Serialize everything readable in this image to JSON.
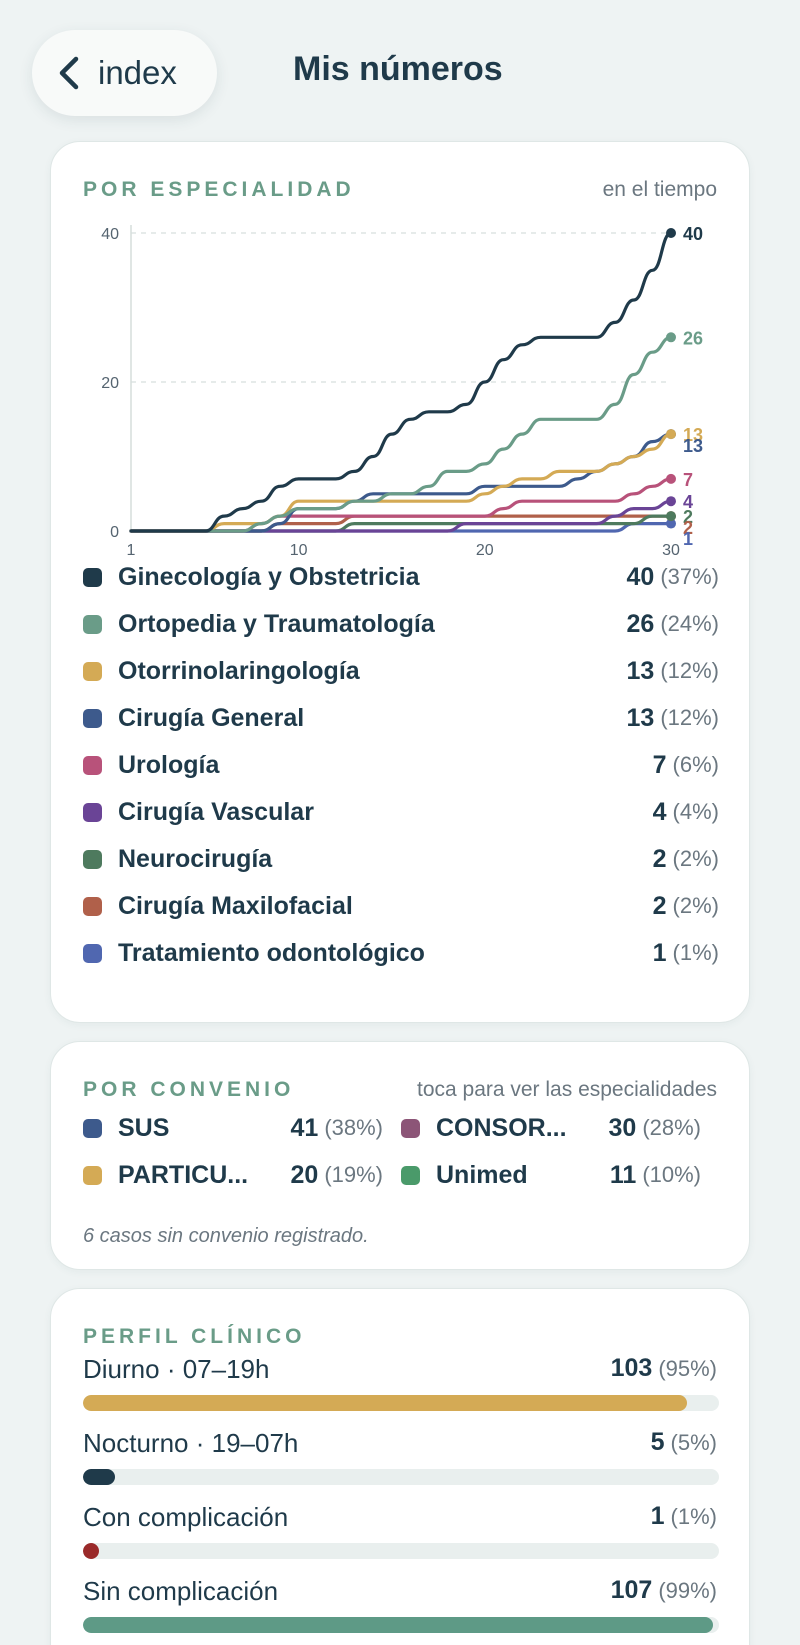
{
  "header": {
    "back_label": "index",
    "title": "Mis números"
  },
  "specialty": {
    "title": "POR ESPECIALIDAD",
    "subtitle": "en el tiempo",
    "items": [
      {
        "label": "Ginecología y Obstetricia",
        "count": "40",
        "pct": "(37%)",
        "color": "#1f3a4a"
      },
      {
        "label": "Ortopedia y Traumatología",
        "count": "26",
        "pct": "(24%)",
        "color": "#6a9c88"
      },
      {
        "label": "Otorrinolaringología",
        "count": "13",
        "pct": "(12%)",
        "color": "#d4aa55"
      },
      {
        "label": "Cirugía General",
        "count": "13",
        "pct": "(12%)",
        "color": "#3d5a8c"
      },
      {
        "label": "Urología",
        "count": "7",
        "pct": "(6%)",
        "color": "#b8527a"
      },
      {
        "label": "Cirugía Vascular",
        "count": "4",
        "pct": "(4%)",
        "color": "#6a4496"
      },
      {
        "label": "Neurocirugía",
        "count": "2",
        "pct": "(2%)",
        "color": "#4e7a5e"
      },
      {
        "label": "Cirugía Maxilofacial",
        "count": "2",
        "pct": "(2%)",
        "color": "#b0604a"
      },
      {
        "label": "Tratamiento odontológico",
        "count": "1",
        "pct": "(1%)",
        "color": "#5067b0"
      }
    ]
  },
  "chart_data": {
    "type": "line",
    "x": [
      1,
      2,
      3,
      4,
      5,
      6,
      7,
      8,
      9,
      10,
      11,
      12,
      13,
      14,
      15,
      16,
      17,
      18,
      19,
      20,
      21,
      22,
      23,
      24,
      25,
      26,
      27,
      28,
      29,
      30
    ],
    "x_ticks": [
      "1",
      "10",
      "20",
      "30"
    ],
    "y_ticks": [
      "0",
      "20",
      "40"
    ],
    "ylim": [
      0,
      40
    ],
    "grid": true,
    "series": [
      {
        "name": "Ginecología y Obstetricia",
        "end_label": "40",
        "color": "#1f3a4a",
        "values": [
          0,
          0,
          0,
          0,
          0,
          2,
          3,
          4,
          6,
          7,
          7,
          7,
          8,
          10,
          13,
          15,
          16,
          16,
          17,
          20,
          23,
          25,
          26,
          26,
          26,
          26,
          28,
          31,
          35,
          40
        ]
      },
      {
        "name": "Ortopedia y Traumatología",
        "end_label": "26",
        "color": "#6a9c88",
        "values": [
          0,
          0,
          0,
          0,
          0,
          0,
          0,
          1,
          2,
          3,
          3,
          3,
          4,
          4,
          5,
          5,
          6,
          8,
          8,
          9,
          11,
          13,
          15,
          15,
          15,
          15,
          17,
          21,
          24,
          26
        ]
      },
      {
        "name": "Otorrinolaringología",
        "end_label": "13",
        "color": "#d4aa55",
        "values": [
          0,
          0,
          0,
          0,
          0,
          1,
          1,
          1,
          2,
          4,
          4,
          4,
          4,
          4,
          4,
          4,
          4,
          4,
          4,
          5,
          6,
          7,
          7,
          8,
          8,
          8,
          9,
          10,
          11,
          13
        ]
      },
      {
        "name": "Cirugía General",
        "end_label": "13",
        "color": "#3d5a8c",
        "values": [
          0,
          0,
          0,
          0,
          0,
          0,
          0,
          0,
          1,
          3,
          3,
          3,
          4,
          5,
          5,
          5,
          5,
          5,
          5,
          6,
          6,
          6,
          6,
          6,
          7,
          8,
          9,
          10,
          12,
          13
        ]
      },
      {
        "name": "Urología",
        "end_label": "7",
        "color": "#b8527a",
        "values": [
          0,
          0,
          0,
          0,
          0,
          0,
          0,
          1,
          2,
          2,
          2,
          2,
          2,
          2,
          2,
          2,
          2,
          2,
          2,
          2,
          3,
          4,
          4,
          4,
          4,
          4,
          4,
          5,
          6,
          7
        ]
      },
      {
        "name": "Cirugía Vascular",
        "end_label": "4",
        "color": "#6a4496",
        "values": [
          0,
          0,
          0,
          0,
          0,
          0,
          0,
          0,
          0,
          0,
          0,
          0,
          0,
          0,
          0,
          0,
          0,
          0,
          1,
          1,
          1,
          1,
          1,
          1,
          1,
          1,
          2,
          3,
          3,
          4
        ]
      },
      {
        "name": "Neurocirugía",
        "end_label": "2",
        "color": "#4e7a5e",
        "values": [
          0,
          0,
          0,
          0,
          0,
          0,
          0,
          0,
          0,
          0,
          0,
          0,
          1,
          1,
          1,
          1,
          1,
          1,
          1,
          1,
          1,
          1,
          1,
          1,
          1,
          1,
          1,
          1,
          2,
          2
        ]
      },
      {
        "name": "Cirugía Maxilofacial",
        "end_label": "2",
        "color": "#b0604a",
        "values": [
          0,
          0,
          0,
          0,
          0,
          0,
          0,
          0,
          1,
          1,
          1,
          1,
          2,
          2,
          2,
          2,
          2,
          2,
          2,
          2,
          2,
          2,
          2,
          2,
          2,
          2,
          2,
          2,
          2,
          2
        ]
      },
      {
        "name": "Tratamiento odontológico",
        "end_label": "1",
        "color": "#5067b0",
        "values": [
          0,
          0,
          0,
          0,
          0,
          0,
          0,
          0,
          0,
          0,
          0,
          0,
          0,
          0,
          0,
          0,
          0,
          0,
          0,
          0,
          0,
          0,
          0,
          0,
          0,
          0,
          0,
          1,
          1,
          1
        ]
      }
    ]
  },
  "convenio": {
    "title": "POR CONVENIO",
    "subtitle": "toca para ver las especialidades",
    "items": [
      {
        "label": "SUS",
        "count": "41",
        "pct": "(38%)",
        "color": "#3d5a8c"
      },
      {
        "label": "CONSOR...",
        "count": "30",
        "pct": "(28%)",
        "color": "#8c5577"
      },
      {
        "label": "PARTICU...",
        "count": "20",
        "pct": "(19%)",
        "color": "#d4aa55"
      },
      {
        "label": "Unimed",
        "count": "11",
        "pct": "(10%)",
        "color": "#4a9a6a"
      }
    ],
    "note": "6 casos sin convenio registrado."
  },
  "profile": {
    "title": "PERFIL CLÍNICO",
    "rows": [
      {
        "label": "Diurno · 07–19h",
        "count": "103",
        "pct": "(95%)",
        "fraction": 0.95,
        "color": "#d4aa55"
      },
      {
        "label": "Nocturno · 19–07h",
        "count": "5",
        "pct": "(5%)",
        "fraction": 0.05,
        "color": "#1f3a4a"
      },
      {
        "label": "Con complicación",
        "count": "1",
        "pct": "(1%)",
        "fraction": 0.01,
        "color": "#9a2a2a"
      },
      {
        "label": "Sin complicación",
        "count": "107",
        "pct": "(99%)",
        "fraction": 0.99,
        "color": "#5e9a86"
      }
    ]
  }
}
